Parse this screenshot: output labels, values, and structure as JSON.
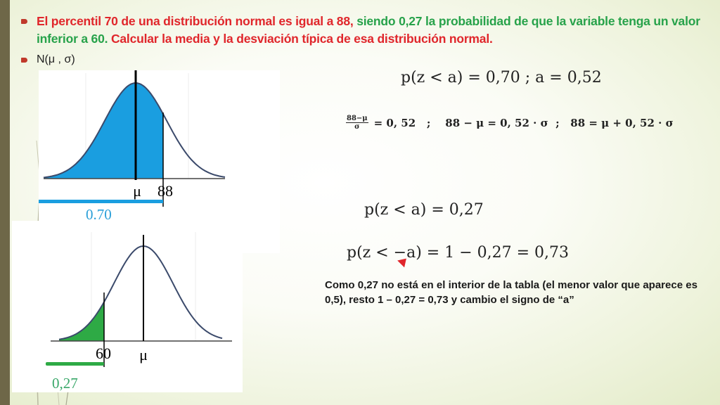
{
  "title": {
    "part1": "El percentil 70 de una distribución normal es igual a 88,",
    "part2": " siendo  0,27 la probabilidad de que la variable tenga un valor inferior a 60.",
    "part3": " Calcular la media y la desviación típica de esa distribución normal."
  },
  "notation": "N(μ , σ)",
  "figure_top": {
    "mean_label": "μ",
    "value_label": "88",
    "prob_label": "0.70",
    "fill_color": "#1a9ee0"
  },
  "figure_bottom": {
    "mean_label": "μ",
    "value_label": "60",
    "prob_label": "0,27",
    "fill_color": "#2eaa45"
  },
  "equations": {
    "eq1": "p(z < a) = 0,70  ;   a = 0,52",
    "eq2_num": "88−μ",
    "eq2_den": "σ",
    "eq2_rest": "= 0, 52   ;    88 − μ = 0, 52 · σ  ;   88 = μ + 0, 52 · σ",
    "eq3": "p(z < a) = 0,27",
    "eq4": "p(z < −a) = 1 − 0,27 = 0,73"
  },
  "note": "Como 0,27 no está en el interior de la tabla (el menor valor que aparece es 0,5), resto 1 – 0,27 = 0,73 y cambio el signo de “a”"
}
